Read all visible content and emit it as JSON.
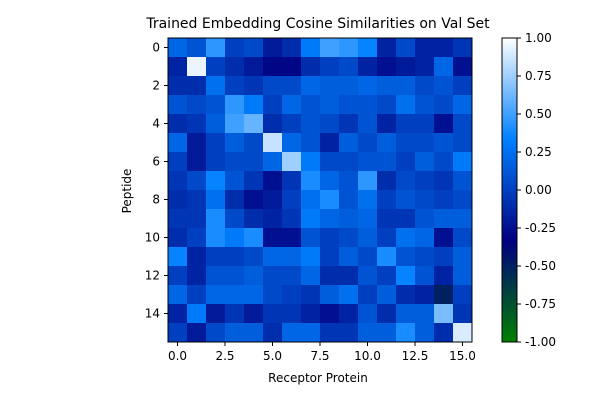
{
  "chart_data": {
    "type": "heatmap",
    "title": "Trained Embedding Cosine Similarities on Val Set",
    "xlabel": "Receptor Protein",
    "ylabel": "Peptide",
    "x_ticks": [
      "0.0",
      "2.5",
      "5.0",
      "7.5",
      "10.0",
      "12.5",
      "15.0"
    ],
    "x_tick_values": [
      0,
      2.5,
      5,
      7.5,
      10,
      12.5,
      15
    ],
    "y_ticks": [
      "0",
      "2",
      "4",
      "6",
      "8",
      "10",
      "12",
      "14"
    ],
    "y_tick_values": [
      0,
      2,
      4,
      6,
      8,
      10,
      12,
      14
    ],
    "xlim": [
      -0.5,
      15.5
    ],
    "ylim": [
      15.5,
      -0.5
    ],
    "colorbar": {
      "min": -1.0,
      "max": 1.0,
      "ticks": [
        "1.00",
        "0.75",
        "0.50",
        "0.25",
        "0.00",
        "-0.25",
        "-0.50",
        "-0.75",
        "-1.00"
      ],
      "tick_values": [
        1.0,
        0.75,
        0.5,
        0.25,
        0.0,
        -0.25,
        -0.5,
        -0.75,
        -1.0
      ],
      "colormap": "ocean",
      "colors": [
        "#008000",
        "#000080",
        "#0080ff",
        "#ffffff"
      ]
    },
    "grid": false,
    "values": [
      [
        0.2,
        0.1,
        0.45,
        0.0,
        0.05,
        -0.2,
        -0.1,
        0.3,
        0.5,
        0.45,
        0.35,
        -0.15,
        0.05,
        -0.15,
        -0.15,
        -0.05
      ],
      [
        -0.15,
        0.95,
        0.0,
        -0.1,
        -0.2,
        -0.3,
        -0.3,
        -0.1,
        0.0,
        0.05,
        -0.15,
        -0.25,
        -0.2,
        -0.15,
        0.2,
        -0.25
      ],
      [
        -0.1,
        -0.1,
        0.25,
        0.0,
        -0.05,
        0.05,
        0.05,
        0.2,
        0.15,
        0.15,
        0.2,
        0.15,
        0.15,
        0.05,
        0.1,
        0.0
      ],
      [
        0.1,
        0.05,
        0.1,
        0.45,
        0.3,
        0.0,
        0.2,
        0.1,
        0.15,
        0.1,
        0.1,
        0.05,
        0.25,
        0.1,
        0.05,
        0.2
      ],
      [
        -0.1,
        -0.05,
        0.15,
        0.5,
        0.6,
        -0.1,
        0.0,
        0.1,
        0.05,
        -0.05,
        0.1,
        -0.15,
        0.0,
        0.0,
        -0.25,
        0.05
      ],
      [
        0.2,
        -0.2,
        0.0,
        0.15,
        0.05,
        0.85,
        0.2,
        0.1,
        -0.15,
        0.15,
        0.05,
        0.15,
        0.05,
        0.05,
        0.1,
        0.05
      ],
      [
        0.0,
        -0.2,
        0.0,
        0.05,
        0.05,
        0.2,
        0.75,
        0.3,
        0.05,
        0.05,
        0.1,
        0.1,
        0.0,
        0.15,
        0.05,
        0.3
      ],
      [
        -0.05,
        0.05,
        0.35,
        0.1,
        -0.05,
        -0.25,
        -0.05,
        0.4,
        0.2,
        0.1,
        0.45,
        -0.1,
        0.05,
        0.0,
        -0.05,
        0.1
      ],
      [
        -0.1,
        -0.05,
        0.25,
        -0.1,
        -0.25,
        -0.2,
        0.0,
        0.25,
        0.4,
        0.1,
        0.25,
        0.0,
        0.1,
        0.05,
        0.0,
        0.05
      ],
      [
        -0.05,
        -0.05,
        0.4,
        0.05,
        -0.1,
        -0.15,
        -0.05,
        0.3,
        0.2,
        0.15,
        0.2,
        -0.05,
        -0.05,
        0.1,
        0.15,
        0.15
      ],
      [
        -0.1,
        0.0,
        0.4,
        0.3,
        0.4,
        -0.25,
        -0.25,
        0.1,
        0.0,
        0.05,
        0.15,
        0.0,
        0.25,
        0.2,
        -0.25,
        0.05
      ],
      [
        0.35,
        -0.15,
        0.0,
        0.0,
        0.05,
        0.2,
        0.2,
        0.3,
        0.0,
        0.15,
        0.05,
        0.4,
        0.1,
        0.05,
        0.0,
        0.15
      ],
      [
        0.0,
        -0.15,
        0.1,
        0.1,
        0.15,
        0.05,
        0.05,
        0.2,
        -0.1,
        -0.1,
        0.1,
        0.0,
        0.35,
        0.1,
        -0.15,
        0.15
      ],
      [
        0.2,
        0.0,
        0.2,
        0.2,
        0.2,
        0.05,
        0.0,
        -0.05,
        0.15,
        0.25,
        0.0,
        0.15,
        -0.1,
        -0.15,
        -0.5,
        0.0
      ],
      [
        -0.15,
        0.3,
        -0.2,
        -0.05,
        -0.2,
        -0.05,
        -0.05,
        -0.15,
        -0.25,
        -0.15,
        0.1,
        -0.1,
        0.15,
        0.15,
        0.65,
        -0.05
      ],
      [
        0.0,
        -0.2,
        0.05,
        0.15,
        0.15,
        -0.1,
        0.2,
        0.2,
        -0.05,
        -0.05,
        0.15,
        0.15,
        0.4,
        0.15,
        -0.1,
        0.9
      ]
    ]
  }
}
